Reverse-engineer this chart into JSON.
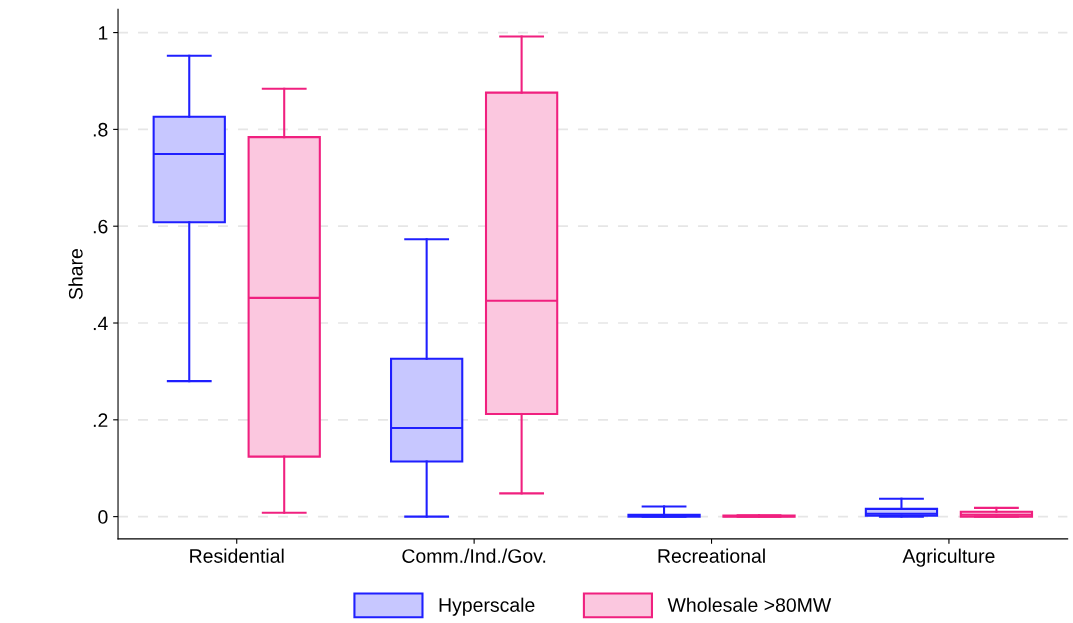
{
  "chart_data": {
    "type": "box",
    "ylabel": "Share",
    "categories": [
      "Residential",
      "Comm./Ind./Gov.",
      "Recreational",
      "Agriculture"
    ],
    "ylim": [
      -0.046,
      1.048
    ],
    "yticks": [
      {
        "value": 0,
        "label": "0"
      },
      {
        "value": 0.2,
        "label": ".2"
      },
      {
        "value": 0.4,
        "label": ".4"
      },
      {
        "value": 0.6,
        "label": ".6"
      },
      {
        "value": 0.8,
        "label": ".8"
      },
      {
        "value": 1,
        "label": "1"
      }
    ],
    "grid": "y",
    "legend": "bottom",
    "series": [
      {
        "name": "Hyperscale",
        "color": "#1f1fff",
        "boxes": [
          {
            "low": 0.28,
            "q1": 0.608,
            "median": 0.749,
            "q3": 0.826,
            "high": 0.952
          },
          {
            "low": 0.0,
            "q1": 0.114,
            "median": 0.183,
            "q3": 0.326,
            "high": 0.573
          },
          {
            "low": 0.0,
            "q1": 0.0,
            "median": 0.002,
            "q3": 0.004,
            "high": 0.021
          },
          {
            "low": 0.0,
            "q1": 0.002,
            "median": 0.006,
            "q3": 0.016,
            "high": 0.037
          }
        ]
      },
      {
        "name": "Wholesale >80MW",
        "color": "#f0207f",
        "boxes": [
          {
            "low": 0.008,
            "q1": 0.124,
            "median": 0.452,
            "q3": 0.784,
            "high": 0.884
          },
          {
            "low": 0.048,
            "q1": 0.212,
            "median": 0.446,
            "q3": 0.876,
            "high": 0.992
          },
          {
            "low": 0.0,
            "q1": 0.0,
            "median": 0.001,
            "q3": 0.002,
            "high": 0.003
          },
          {
            "low": 0.0,
            "q1": 0.0,
            "median": 0.004,
            "q3": 0.01,
            "high": 0.018
          }
        ]
      }
    ]
  }
}
